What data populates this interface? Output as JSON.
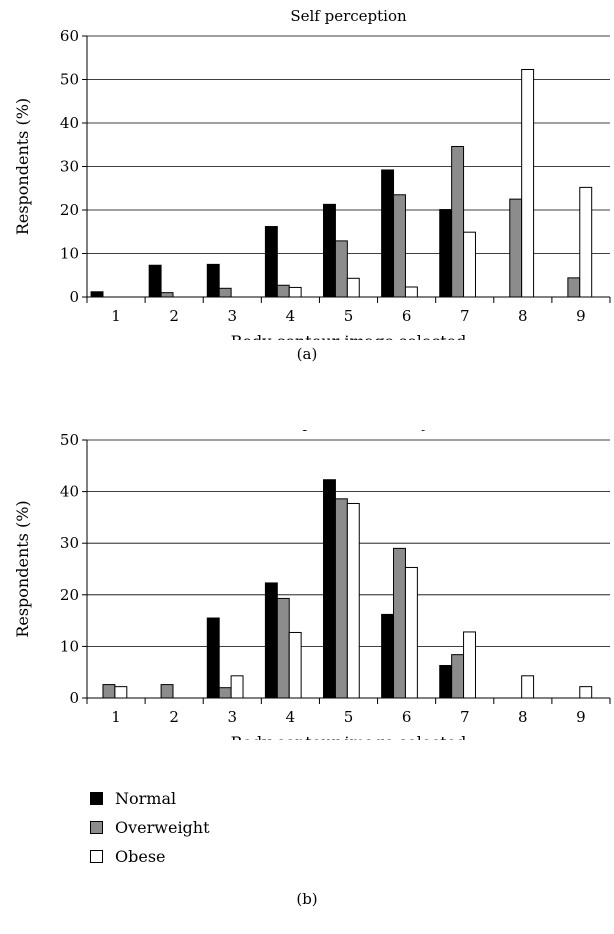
{
  "chart_data": [
    {
      "type": "bar",
      "title": "Self perception",
      "xlabel": "Body contour image selected",
      "ylabel": "Respondents (%)",
      "ylim": [
        0,
        60
      ],
      "yticks": [
        0,
        10,
        20,
        30,
        40,
        50,
        60
      ],
      "grid": true,
      "categories": [
        "1",
        "2",
        "3",
        "4",
        "5",
        "6",
        "7",
        "8",
        "9"
      ],
      "series": [
        {
          "name": "Normal",
          "color": "#000000",
          "values": [
            1.2,
            7.3,
            7.5,
            16.2,
            21.3,
            29.2,
            20.1,
            0,
            0
          ]
        },
        {
          "name": "Overweight",
          "color": "#8c8c8c",
          "values": [
            0,
            1.0,
            2.0,
            2.7,
            12.9,
            23.5,
            34.6,
            22.5,
            4.4
          ]
        },
        {
          "name": "Obese",
          "color": "#ffffff",
          "values": [
            0,
            0,
            0,
            2.2,
            4.3,
            2.3,
            14.9,
            52.3,
            25.2
          ]
        }
      ],
      "caption": "(a)"
    },
    {
      "type": "bar",
      "title": "Perception of “healthy”",
      "xlabel": "Body contour image selected",
      "ylabel": "Respondents (%)",
      "ylim": [
        0,
        50
      ],
      "yticks": [
        0,
        10,
        20,
        30,
        40,
        50
      ],
      "grid": true,
      "categories": [
        "1",
        "2",
        "3",
        "4",
        "5",
        "6",
        "7",
        "8",
        "9"
      ],
      "series": [
        {
          "name": "Normal",
          "color": "#000000",
          "values": [
            0,
            0,
            15.5,
            22.3,
            42.3,
            16.2,
            6.3,
            0,
            0
          ]
        },
        {
          "name": "Overweight",
          "color": "#8c8c8c",
          "values": [
            2.6,
            2.6,
            2.0,
            19.3,
            38.6,
            29.0,
            8.4,
            0,
            0
          ]
        },
        {
          "name": "Obese",
          "color": "#ffffff",
          "values": [
            2.2,
            0,
            4.3,
            12.7,
            37.7,
            25.3,
            12.8,
            4.3,
            2.2
          ]
        }
      ],
      "caption": "(b)"
    }
  ],
  "legend": {
    "placement": "bottom-left",
    "items": [
      {
        "label": "Normal",
        "color": "#000000"
      },
      {
        "label": "Overweight",
        "color": "#8c8c8c"
      },
      {
        "label": "Obese",
        "color": "#ffffff"
      }
    ]
  }
}
